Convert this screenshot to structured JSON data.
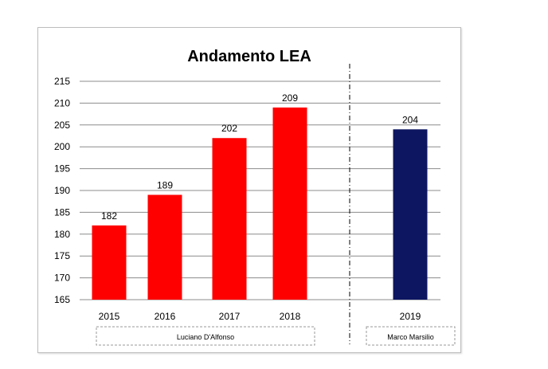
{
  "chart_data": {
    "type": "bar",
    "title": "Andamento LEA",
    "categories": [
      "2015",
      "2016",
      "2017",
      "2018",
      "2019"
    ],
    "values": [
      182,
      189,
      202,
      209,
      204
    ],
    "colors": [
      "#ff0000",
      "#ff0000",
      "#ff0000",
      "#ff0000",
      "#0d1660"
    ],
    "ylim": [
      165,
      215
    ],
    "yticks": [
      165,
      170,
      175,
      180,
      185,
      190,
      195,
      200,
      205,
      210,
      215
    ],
    "grid": true,
    "groups": [
      {
        "label": "Luciano D'Alfonso",
        "categories": [
          "2015",
          "2016",
          "2017",
          "2018"
        ]
      },
      {
        "label": "Marco Marsilio",
        "categories": [
          "2019"
        ]
      }
    ]
  }
}
